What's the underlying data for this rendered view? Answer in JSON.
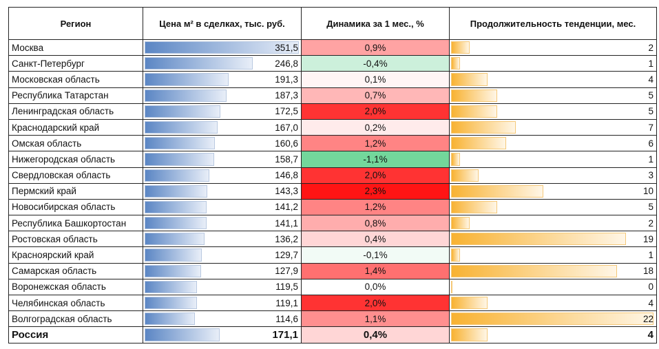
{
  "headers": {
    "region": "Регион",
    "price": "Цена м² в сделках, тыс. руб.",
    "dynamics": "Динамика за 1 мес., %",
    "duration": "Продолжительность тенденции, мес."
  },
  "colors": {
    "price_bar": "#5b86c4",
    "duration_bar": "#f8b232",
    "positive": "#ff1a1a",
    "negative": "#6fcf97"
  },
  "rows": [
    {
      "region": "Москва",
      "price": "351,5",
      "dynamics": "0,9%",
      "duration": "2"
    },
    {
      "region": "Санкт-Петербург",
      "price": "246,8",
      "dynamics": "-0,4%",
      "duration": "1"
    },
    {
      "region": "Московская область",
      "price": "191,3",
      "dynamics": "0,1%",
      "duration": "4"
    },
    {
      "region": "Республика Татарстан",
      "price": "187,3",
      "dynamics": "0,7%",
      "duration": "5"
    },
    {
      "region": "Ленинградская область",
      "price": "172,5",
      "dynamics": "2,0%",
      "duration": "5"
    },
    {
      "region": "Краснодарский край",
      "price": "167,0",
      "dynamics": "0,2%",
      "duration": "7"
    },
    {
      "region": "Омская область",
      "price": "160,6",
      "dynamics": "1,2%",
      "duration": "6"
    },
    {
      "region": "Нижегородская область",
      "price": "158,7",
      "dynamics": "-1,1%",
      "duration": "1"
    },
    {
      "region": "Свердловская область",
      "price": "146,8",
      "dynamics": "2,0%",
      "duration": "3"
    },
    {
      "region": "Пермский край",
      "price": "143,3",
      "dynamics": "2,3%",
      "duration": "10"
    },
    {
      "region": "Новосибирская область",
      "price": "141,2",
      "dynamics": "1,2%",
      "duration": "5"
    },
    {
      "region": "Республика Башкортостан",
      "price": "141,1",
      "dynamics": "0,8%",
      "duration": "2"
    },
    {
      "region": "Ростовская область",
      "price": "136,2",
      "dynamics": "0,4%",
      "duration": "19"
    },
    {
      "region": "Красноярский край",
      "price": "129,7",
      "dynamics": "-0,1%",
      "duration": "1"
    },
    {
      "region": "Самарская область",
      "price": "127,9",
      "dynamics": "1,4%",
      "duration": "18"
    },
    {
      "region": "Воронежская область",
      "price": "119,5",
      "dynamics": "0,0%",
      "duration": "0"
    },
    {
      "region": "Челябинская область",
      "price": "119,1",
      "dynamics": "2,0%",
      "duration": "4"
    },
    {
      "region": "Волгоградская область",
      "price": "114,6",
      "dynamics": "1,1%",
      "duration": "22"
    }
  ],
  "total": {
    "region": "Россия",
    "price": "171,1",
    "dynamics": "0,4%",
    "duration": "4"
  }
}
